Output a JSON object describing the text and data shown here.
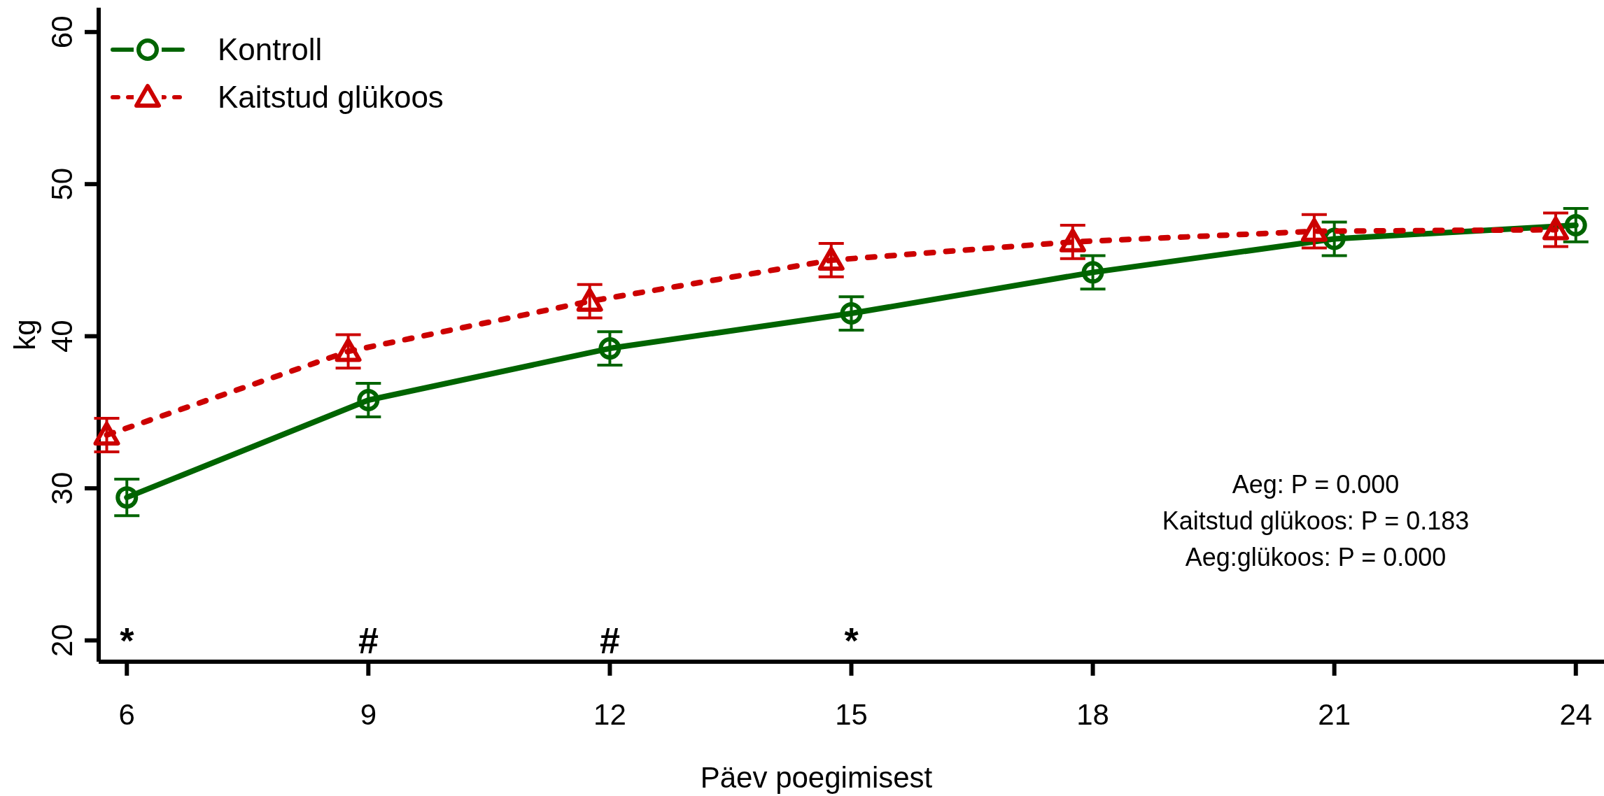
{
  "chart_data": {
    "type": "line",
    "xlabel": "Päev poegimisest",
    "ylabel": "kg",
    "xlim": [
      5.65,
      24.35
    ],
    "xticks": [
      6,
      9,
      12,
      15,
      18,
      21,
      24
    ],
    "ylim": [
      18.6,
      61.6
    ],
    "yticks": [
      20,
      30,
      40,
      50,
      60
    ],
    "series": [
      {
        "name": "Kontroll",
        "color": "#006400",
        "marker": "circle",
        "line_style": "solid",
        "x": [
          6,
          9,
          12,
          15,
          18,
          21,
          24
        ],
        "values": [
          29.4,
          35.8,
          39.2,
          41.5,
          44.2,
          46.4,
          47.3
        ],
        "errors": [
          1.2,
          1.1,
          1.1,
          1.1,
          1.1,
          1.1,
          1.1
        ]
      },
      {
        "name": "Kaitstud glükoos",
        "color": "#cc0000",
        "marker": "triangle",
        "line_style": "dotted",
        "x": [
          5.75,
          8.75,
          11.75,
          14.75,
          17.75,
          20.75,
          23.75
        ],
        "values": [
          33.5,
          39.0,
          42.3,
          45.0,
          46.2,
          46.9,
          47.0
        ],
        "errors": [
          1.1,
          1.1,
          1.1,
          1.1,
          1.1,
          1.1,
          1.1
        ]
      }
    ],
    "legend": "top left",
    "grid": false,
    "annotations": [
      "*",
      "#",
      "#",
      "*",
      "Aeg: P = 0.000",
      "Kaitstud glükoos: P = 0.183",
      "Aeg:glükoos: P = 0.000"
    ]
  }
}
